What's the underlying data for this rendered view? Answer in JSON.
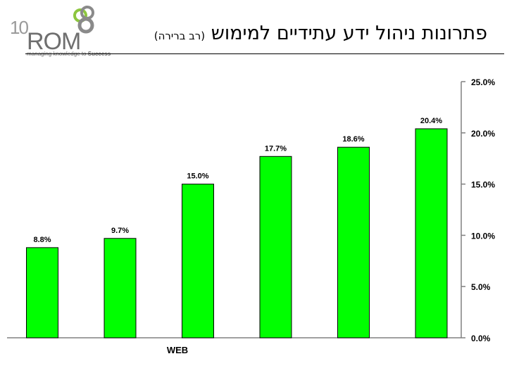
{
  "header": {
    "title": "פתרונות ניהול ידע עתידיים למימוש",
    "subtitle": "(רב ברירה)",
    "logo": {
      "number": "10",
      "brand": "ROM",
      "tagline_pre": "managing knowledge to ",
      "tagline_bold": "Success",
      "ring_colors": [
        "#8dc63f",
        "#8a8a8a"
      ]
    }
  },
  "chart_data": {
    "type": "bar",
    "categories": [
      "",
      "",
      "",
      "",
      "",
      ""
    ],
    "values": [
      8.8,
      9.7,
      15.0,
      17.7,
      18.6,
      20.4
    ],
    "value_labels": [
      "8.8%",
      "9.7%",
      "15.0%",
      "17.7%",
      "18.6%",
      "20.4%"
    ],
    "xlabel": "WEB",
    "ylim": [
      0,
      25
    ],
    "y_ticks": [
      "0.0%",
      "5.0%",
      "10.0%",
      "15.0%",
      "20.0%",
      "25.0%"
    ],
    "y_axis_side": "right",
    "bar_color": "#00ff00",
    "grid": false
  }
}
